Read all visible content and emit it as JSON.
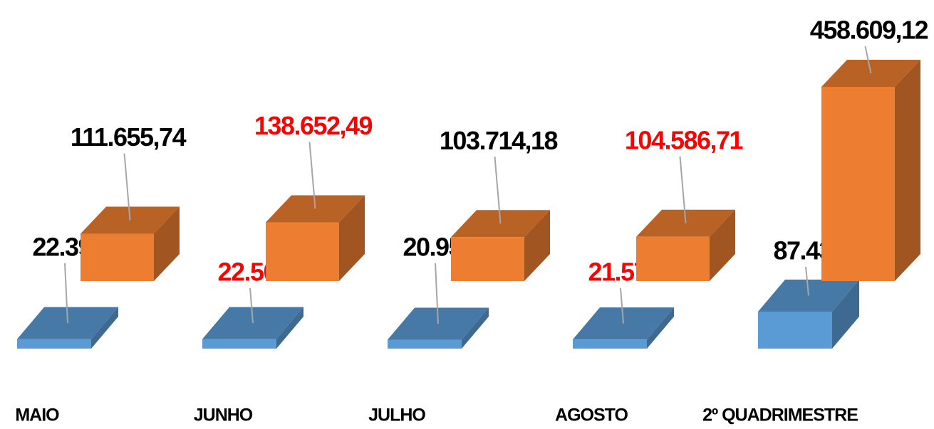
{
  "chart_data": {
    "type": "bar3d",
    "categories": [
      "MAIO",
      "JUNHO",
      "JULHO",
      "AGOSTO",
      "2º QUADRIMESTRE"
    ],
    "series": [
      {
        "color": "#5b9bd5",
        "values": [
          22399,
          22509,
          20951,
          21577,
          87436
        ],
        "value_labels": [
          "22.399",
          "22.509",
          "20.951",
          "21.577",
          "87.436"
        ],
        "label_colors": [
          "#000000",
          "#ff0000",
          "#000000",
          "#ff0000",
          "#000000"
        ]
      },
      {
        "color": "#ed7d31",
        "values": [
          111655.74,
          138652.49,
          103714.18,
          104586.71,
          458609.12
        ],
        "value_labels": [
          "111.655,74",
          "138.652,49",
          "103.714,18",
          "104.586,71",
          "458.609,12"
        ],
        "label_colors": [
          "#000000",
          "#ff0000",
          "#000000",
          "#ff0000",
          "#000000"
        ]
      }
    ]
  }
}
